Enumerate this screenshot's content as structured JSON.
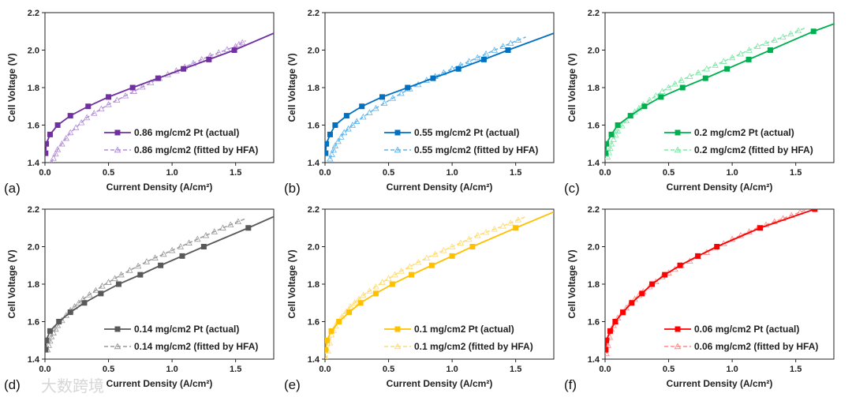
{
  "watermark": "大数跨境",
  "chart_data": [
    {
      "type": "line",
      "panel_label": "(a)",
      "xlabel": "Current Density (A/cm²)",
      "ylabel": "Cell Voltage (V)",
      "xlim": [
        0,
        1.8
      ],
      "ylim": [
        1.4,
        2.2
      ],
      "xticks": [
        "0.0",
        "0.5",
        "1.0",
        "1.5"
      ],
      "yticks": [
        "1.4",
        "1.6",
        "1.8",
        "2.0",
        "2.2"
      ],
      "legend_position": "bottom-right",
      "color": "#7030A0",
      "fit_color": "#B48FD8",
      "series": [
        {
          "name": "0.86 mg/cm2 Pt (actual)",
          "marker": "square",
          "x": [
            0.005,
            0.01,
            0.04,
            0.1,
            0.2,
            0.34,
            0.5,
            0.69,
            0.89,
            1.09,
            1.29,
            1.49
          ],
          "y": [
            1.45,
            1.5,
            1.55,
            1.6,
            1.65,
            1.7,
            1.75,
            1.8,
            1.85,
            1.9,
            1.95,
            2.0
          ],
          "line_end": [
            1.8,
            2.09
          ]
        },
        {
          "name": "0.86 mg/cm2 (fitted by HFA)",
          "marker": "triangle",
          "x": [
            0.05,
            0.1,
            0.2,
            0.33,
            0.5,
            0.7,
            0.9,
            1.1,
            1.3,
            1.5,
            1.58
          ],
          "y": [
            1.4,
            1.47,
            1.56,
            1.64,
            1.71,
            1.78,
            1.85,
            1.91,
            1.97,
            2.02,
            2.05
          ]
        }
      ]
    },
    {
      "type": "line",
      "panel_label": "(b)",
      "xlabel": "Current Density (A/cm²)",
      "ylabel": "Cell Voltage (V)",
      "xlim": [
        0,
        1.8
      ],
      "ylim": [
        1.4,
        2.2
      ],
      "xticks": [
        "0.0",
        "0.5",
        "1.0",
        "1.5"
      ],
      "yticks": [
        "1.4",
        "1.6",
        "1.8",
        "2.0",
        "2.2"
      ],
      "legend_position": "bottom-right",
      "color": "#0070C0",
      "fit_color": "#5DB6F0",
      "series": [
        {
          "name": "0.55 mg/cm2 Pt (actual)",
          "marker": "square",
          "x": [
            0.005,
            0.01,
            0.04,
            0.08,
            0.17,
            0.29,
            0.45,
            0.65,
            0.85,
            1.05,
            1.25,
            1.44
          ],
          "y": [
            1.45,
            1.5,
            1.55,
            1.6,
            1.65,
            1.7,
            1.75,
            1.8,
            1.85,
            1.9,
            1.95,
            2.0
          ],
          "line_end": [
            1.8,
            2.09
          ]
        },
        {
          "name": "0.55 mg/cm2 (fitted by HFA)",
          "marker": "triangle",
          "x": [
            0.04,
            0.08,
            0.15,
            0.25,
            0.4,
            0.6,
            0.8,
            1.0,
            1.2,
            1.4,
            1.58
          ],
          "y": [
            1.42,
            1.49,
            1.56,
            1.62,
            1.69,
            1.77,
            1.84,
            1.9,
            1.96,
            2.02,
            2.07
          ]
        }
      ]
    },
    {
      "type": "line",
      "panel_label": "(c)",
      "xlabel": "Current Density (A/cm²)",
      "ylabel": "Cell Voltage (V)",
      "xlim": [
        0,
        1.8
      ],
      "ylim": [
        1.4,
        2.2
      ],
      "xticks": [
        "0.0",
        "0.5",
        "1.0",
        "1.5"
      ],
      "yticks": [
        "1.4",
        "1.6",
        "1.8",
        "2.0",
        "2.2"
      ],
      "legend_position": "bottom-right",
      "color": "#00B050",
      "fit_color": "#7FE8A8",
      "series": [
        {
          "name": "0.2 mg/cm2 Pt (actual)",
          "marker": "square",
          "x": [
            0.005,
            0.01,
            0.05,
            0.1,
            0.2,
            0.31,
            0.44,
            0.61,
            0.79,
            0.96,
            1.13,
            1.3,
            1.64
          ],
          "y": [
            1.45,
            1.5,
            1.55,
            1.6,
            1.65,
            1.7,
            1.75,
            1.8,
            1.85,
            1.9,
            1.95,
            2.0,
            2.1
          ],
          "line_end": [
            1.8,
            2.14
          ]
        },
        {
          "name": "0.2 mg/cm2 (fitted by HFA)",
          "marker": "triangle",
          "x": [
            0.02,
            0.05,
            0.1,
            0.2,
            0.3,
            0.45,
            0.6,
            0.8,
            1.0,
            1.2,
            1.4,
            1.58
          ],
          "y": [
            1.43,
            1.5,
            1.57,
            1.65,
            1.71,
            1.78,
            1.84,
            1.9,
            1.96,
            2.02,
            2.07,
            2.12
          ]
        }
      ]
    },
    {
      "type": "line",
      "panel_label": "(d)",
      "xlabel": "Current Density (A/cm²)",
      "ylabel": "Cell Voltage (V)",
      "xlim": [
        0,
        1.8
      ],
      "ylim": [
        1.4,
        2.2
      ],
      "xticks": [
        "0.0",
        "0.5",
        "1.0",
        "1.5"
      ],
      "yticks": [
        "1.4",
        "1.6",
        "1.8",
        "2.0",
        "2.2"
      ],
      "legend_position": "bottom-right",
      "color": "#595959",
      "fit_color": "#9A9A9A",
      "series": [
        {
          "name": "0.14 mg/cm2 Pt (actual)",
          "marker": "square",
          "x": [
            0.005,
            0.01,
            0.04,
            0.11,
            0.2,
            0.31,
            0.44,
            0.58,
            0.75,
            0.91,
            1.08,
            1.25,
            1.6
          ],
          "y": [
            1.45,
            1.5,
            1.55,
            1.6,
            1.65,
            1.7,
            1.75,
            1.8,
            1.85,
            1.9,
            1.95,
            2.0,
            2.1
          ],
          "line_end": [
            1.8,
            2.16
          ]
        },
        {
          "name": "0.14 mg/cm2 (fitted by HFA)",
          "marker": "triangle",
          "x": [
            0.02,
            0.05,
            0.1,
            0.2,
            0.3,
            0.45,
            0.6,
            0.8,
            1.0,
            1.2,
            1.4,
            1.58
          ],
          "y": [
            1.45,
            1.52,
            1.58,
            1.66,
            1.72,
            1.79,
            1.85,
            1.92,
            1.98,
            2.04,
            2.1,
            2.15
          ]
        }
      ]
    },
    {
      "type": "line",
      "panel_label": "(e)",
      "xlabel": "Current Density (A/cm²)",
      "ylabel": "Cell Voltage (V)",
      "xlim": [
        0,
        1.8
      ],
      "ylim": [
        1.4,
        2.2
      ],
      "xticks": [
        "0.0",
        "0.5",
        "1.0",
        "1.5"
      ],
      "yticks": [
        "1.4",
        "1.6",
        "1.8",
        "2.0",
        "2.2"
      ],
      "legend_position": "bottom-right",
      "color": "#FFC000",
      "fit_color": "#FFDB70",
      "series": [
        {
          "name": "0.1 mg/cm2 Pt (actual)",
          "marker": "square",
          "x": [
            0.005,
            0.015,
            0.05,
            0.11,
            0.19,
            0.28,
            0.4,
            0.53,
            0.68,
            0.84,
            1.0,
            1.16,
            1.5
          ],
          "y": [
            1.45,
            1.5,
            1.55,
            1.6,
            1.65,
            1.7,
            1.75,
            1.8,
            1.85,
            1.9,
            1.95,
            2.0,
            2.1
          ],
          "line_end": [
            1.8,
            2.185
          ]
        },
        {
          "name": "0.1 mg/cm2 (fitted by HFA)",
          "marker": "triangle",
          "x": [
            0.01,
            0.05,
            0.1,
            0.2,
            0.3,
            0.45,
            0.6,
            0.8,
            1.0,
            1.2,
            1.4,
            1.58
          ],
          "y": [
            1.4,
            1.53,
            1.6,
            1.68,
            1.74,
            1.81,
            1.87,
            1.94,
            2.0,
            2.06,
            2.11,
            2.16
          ]
        }
      ]
    },
    {
      "type": "line",
      "panel_label": "(f)",
      "xlabel": "Current Density (A/cm²)",
      "ylabel": "Cell Voltage (V)",
      "xlim": [
        0,
        1.8
      ],
      "ylim": [
        1.4,
        2.2
      ],
      "xticks": [
        "0.0",
        "0.5",
        "1.0",
        "1.5"
      ],
      "yticks": [
        "1.4",
        "1.6",
        "1.8",
        "2.0",
        "2.2"
      ],
      "legend_position": "bottom-right",
      "color": "#FF0000",
      "fit_color": "#FF8A8A",
      "series": [
        {
          "name": "0.06 mg/cm2 Pt (actual)",
          "marker": "square",
          "x": [
            0.005,
            0.01,
            0.04,
            0.08,
            0.14,
            0.21,
            0.29,
            0.37,
            0.47,
            0.59,
            0.73,
            0.88,
            1.22,
            1.65
          ],
          "y": [
            1.45,
            1.5,
            1.55,
            1.6,
            1.65,
            1.7,
            1.75,
            1.8,
            1.85,
            1.9,
            1.95,
            2.0,
            2.1,
            2.2
          ],
          "line_end": [
            1.65,
            2.2
          ]
        },
        {
          "name": "0.06 mg/cm2 (fitted by HFA)",
          "marker": "triangle",
          "x": [
            0.01,
            0.05,
            0.1,
            0.2,
            0.3,
            0.45,
            0.6,
            0.8,
            1.0,
            1.2,
            1.4,
            1.6
          ],
          "y": [
            1.43,
            1.56,
            1.62,
            1.7,
            1.76,
            1.84,
            1.9,
            1.97,
            2.04,
            2.1,
            2.15,
            2.2
          ]
        }
      ]
    }
  ]
}
